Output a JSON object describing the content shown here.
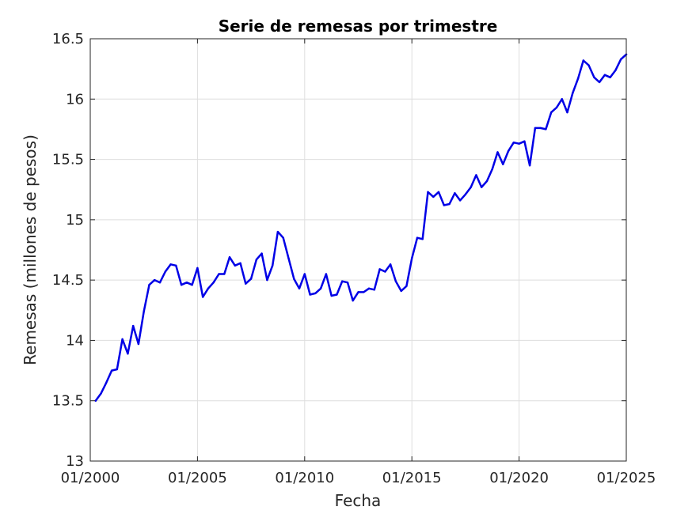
{
  "chart_data": {
    "type": "line",
    "title": "Serie de remesas por trimestre",
    "xlabel": "Fecha",
    "ylabel": "Remesas (millones de pesos)",
    "xlim": [
      "2000-01",
      "2025-01"
    ],
    "ylim": [
      13,
      16.5
    ],
    "xticks": [
      "01/2000",
      "01/2005",
      "01/2010",
      "01/2015",
      "01/2020",
      "01/2025"
    ],
    "yticks": [
      "13",
      "13.5",
      "14",
      "14.5",
      "15",
      "15.5",
      "16",
      "16.5"
    ],
    "grid": true,
    "colors": {
      "series": "#0000e6",
      "grid": "#dedede",
      "axis": "#262626"
    },
    "series": [
      {
        "x": [
          "2000-04",
          "2000-07",
          "2000-10",
          "2001-01",
          "2001-04",
          "2001-07",
          "2001-10",
          "2002-01",
          "2002-04",
          "2002-07",
          "2002-10",
          "2003-01",
          "2003-04",
          "2003-07",
          "2003-10",
          "2004-01",
          "2004-04",
          "2004-07",
          "2004-10",
          "2005-01",
          "2005-04",
          "2005-07",
          "2005-10",
          "2006-01",
          "2006-04",
          "2006-07",
          "2006-10",
          "2007-01",
          "2007-04",
          "2007-07",
          "2007-10",
          "2008-01",
          "2008-04",
          "2008-07",
          "2008-10",
          "2009-01",
          "2009-04",
          "2009-07",
          "2009-10",
          "2010-01",
          "2010-04",
          "2010-07",
          "2010-10",
          "2011-01",
          "2011-04",
          "2011-07",
          "2011-10",
          "2012-01",
          "2012-04",
          "2012-07",
          "2012-10",
          "2013-01",
          "2013-04",
          "2013-07",
          "2013-10",
          "2014-01",
          "2014-04",
          "2014-07",
          "2014-10",
          "2015-01",
          "2015-04",
          "2015-07",
          "2015-10",
          "2016-01",
          "2016-04",
          "2016-07",
          "2016-10",
          "2017-01",
          "2017-04",
          "2017-07",
          "2017-10",
          "2018-01",
          "2018-04",
          "2018-07",
          "2018-10",
          "2019-01",
          "2019-04",
          "2019-07",
          "2019-10",
          "2020-01",
          "2020-04",
          "2020-07",
          "2020-10",
          "2021-01",
          "2021-04",
          "2021-07",
          "2021-10",
          "2022-01",
          "2022-04",
          "2022-07",
          "2022-10",
          "2023-01",
          "2023-04",
          "2023-07",
          "2023-10",
          "2024-01",
          "2024-04",
          "2024-07",
          "2024-10",
          "2025-01"
        ],
        "values": [
          13.5,
          13.56,
          13.65,
          13.75,
          13.76,
          14.01,
          13.89,
          14.12,
          13.97,
          14.24,
          14.46,
          14.5,
          14.48,
          14.57,
          14.63,
          14.62,
          14.46,
          14.48,
          14.46,
          14.6,
          14.36,
          14.43,
          14.48,
          14.55,
          14.55,
          14.69,
          14.62,
          14.64,
          14.47,
          14.51,
          14.67,
          14.72,
          14.5,
          14.62,
          14.9,
          14.85,
          14.68,
          14.51,
          14.43,
          14.55,
          14.38,
          14.39,
          14.43,
          14.55,
          14.37,
          14.38,
          14.49,
          14.48,
          14.33,
          14.4,
          14.4,
          14.43,
          14.42,
          14.59,
          14.57,
          14.63,
          14.49,
          14.41,
          14.45,
          14.68,
          14.85,
          14.84,
          15.23,
          15.19,
          15.23,
          15.12,
          15.13,
          15.22,
          15.16,
          15.21,
          15.27,
          15.37,
          15.27,
          15.32,
          15.42,
          15.56,
          15.46,
          15.57,
          15.64,
          15.63,
          15.65,
          15.45,
          15.76,
          15.76,
          15.75,
          15.89,
          15.93,
          16.0,
          15.89,
          16.05,
          16.17,
          16.32,
          16.28,
          16.18,
          16.14,
          16.2,
          16.18,
          16.24,
          16.33,
          16.37
        ]
      }
    ]
  }
}
